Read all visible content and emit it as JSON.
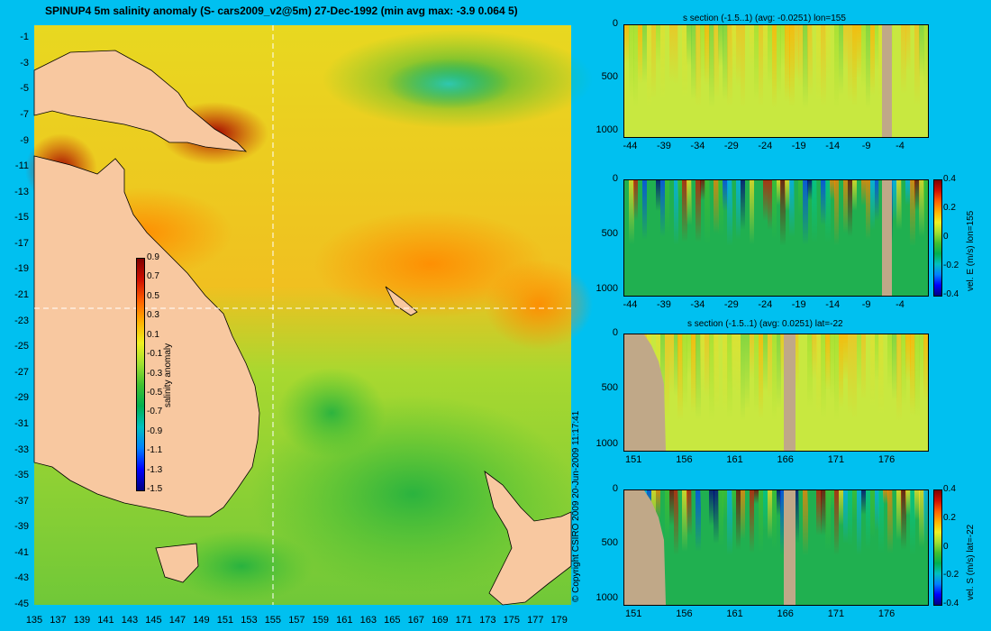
{
  "page": {
    "title": "SPINUP4 5m salinity anomaly  (S- cars2009_v2@5m) 27-Dec-1992  (min avg max: -3.9 0.064 5)",
    "copyright": "© Copyright CSIRO 2009   20-Jun-2009 11:17:41"
  },
  "colors": {
    "background": "#00c0f0",
    "land": "#f8c8a0",
    "bathymetry": "#c0a888",
    "colormap": [
      "#00007f",
      "#0000ff",
      "#0080ff",
      "#00c0c0",
      "#00b050",
      "#40c030",
      "#a0e030",
      "#f0f020",
      "#ffb000",
      "#ff6000",
      "#d01000",
      "#800000"
    ]
  },
  "chart_data": [
    {
      "type": "heatmap",
      "name": "map",
      "title": "SPINUP4 5m salinity anomaly  (S- cars2009_v2@5m) 27-Dec-1992  (min avg max: -3.9 0.064 5)",
      "x_ticks": [
        "135",
        "137",
        "139",
        "141",
        "143",
        "145",
        "147",
        "149",
        "151",
        "153",
        "155",
        "157",
        "159",
        "161",
        "163",
        "165",
        "167",
        "169",
        "171",
        "173",
        "175",
        "177",
        "179"
      ],
      "y_ticks": [
        "-1",
        "-3",
        "-5",
        "-7",
        "-9",
        "-11",
        "-13",
        "-15",
        "-17",
        "-19",
        "-21",
        "-23",
        "-25",
        "-27",
        "-29",
        "-31",
        "-33",
        "-35",
        "-37",
        "-39",
        "-41",
        "-43",
        "-45"
      ],
      "xlim": [
        135,
        180
      ],
      "ylim": [
        -45,
        0
      ],
      "section_lines": {
        "lon": 155,
        "lat": -22
      },
      "colorbar": {
        "label": "salinity anomaly",
        "ticks": [
          "0.9",
          "0.7",
          "0.5",
          "0.3",
          "0.1",
          "-0.1",
          "-0.3",
          "-0.5",
          "-0.7",
          "-0.9",
          "-1.1",
          "-1.3",
          "-1.5"
        ],
        "range": [
          -1.5,
          0.9
        ]
      }
    },
    {
      "type": "heatmap",
      "name": "s-section-lon155",
      "title": "s section (-1.5..1) (avg: -0.0251) lon=155",
      "x_ticks": [
        "-44",
        "-39",
        "-34",
        "-29",
        "-24",
        "-19",
        "-14",
        "-9",
        "-4"
      ],
      "y_ticks": [
        "0",
        "500",
        "1000"
      ],
      "xlim": [
        -45,
        0
      ],
      "ylim": [
        1050,
        0
      ]
    },
    {
      "type": "heatmap",
      "name": "vel-e-lon155",
      "title": "",
      "x_ticks": [
        "-44",
        "-39",
        "-34",
        "-29",
        "-24",
        "-19",
        "-14",
        "-9",
        "-4"
      ],
      "y_ticks": [
        "0",
        "500",
        "1000"
      ],
      "xlim": [
        -45,
        0
      ],
      "ylim": [
        1050,
        0
      ],
      "colorbar": {
        "label": "vel. E (m/s) lon=155",
        "ticks": [
          "0.4",
          "0.2",
          "0",
          "-0.2",
          "-0.4"
        ],
        "range": [
          -0.4,
          0.4
        ]
      }
    },
    {
      "type": "heatmap",
      "name": "s-section-lat-22",
      "title": "s section (-1.5..1) (avg: 0.0251) lat=-22",
      "x_ticks": [
        "151",
        "156",
        "161",
        "166",
        "171",
        "176"
      ],
      "y_ticks": [
        "0",
        "500",
        "1000"
      ],
      "xlim": [
        150,
        180
      ],
      "ylim": [
        1050,
        0
      ]
    },
    {
      "type": "heatmap",
      "name": "vel-s-lat-22",
      "title": "",
      "x_ticks": [
        "151",
        "156",
        "161",
        "166",
        "171",
        "176"
      ],
      "y_ticks": [
        "0",
        "500",
        "1000"
      ],
      "xlim": [
        150,
        180
      ],
      "ylim": [
        1050,
        0
      ],
      "colorbar": {
        "label": "vel. S (m/s) lat=-22",
        "ticks": [
          "0.4",
          "0.2",
          "0",
          "-0.2",
          "-0.4"
        ],
        "range": [
          -0.4,
          0.4
        ]
      }
    }
  ]
}
